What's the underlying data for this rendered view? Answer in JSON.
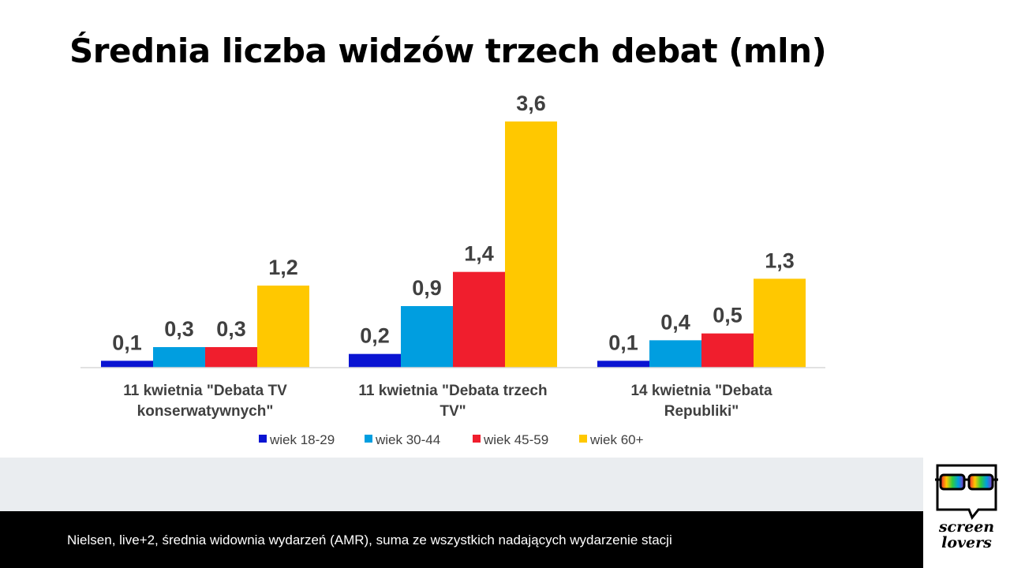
{
  "chart_data": {
    "type": "bar",
    "title": "Średnia liczba widzów trzech debat (mln)",
    "categories": [
      [
        "11 kwietnia \"Debata TV",
        "konserwatywnych\""
      ],
      [
        "11 kwietnia \"Debata trzech",
        "TV\""
      ],
      [
        "14 kwietnia \"Debata",
        "Republiki\""
      ]
    ],
    "series": [
      {
        "name": "wiek 18-29",
        "color": "#0a14d2",
        "values": [
          0.1,
          0.2,
          0.1
        ]
      },
      {
        "name": "wiek 30-44",
        "color": "#009ee0",
        "values": [
          0.3,
          0.9,
          0.4
        ]
      },
      {
        "name": "wiek 45-59",
        "color": "#f01e2d",
        "values": [
          0.3,
          1.4,
          0.5
        ]
      },
      {
        "name": "wiek 60+",
        "color": "#ffc800",
        "values": [
          1.2,
          3.6,
          1.3
        ]
      }
    ],
    "decimal_separator": ",",
    "ylim": [
      0,
      3.6
    ],
    "grid": false,
    "legend_position": "bottom"
  },
  "footer": {
    "source": "Nielsen, live+2, średnia widownia wydarzeń (AMR), suma ze wszystkich nadających wydarzenie stacji"
  },
  "logo": {
    "line1": "screen",
    "line2": "lovers",
    "colors": [
      "#f01e2d",
      "#ffc800",
      "#2ecc40",
      "#009ee0",
      "#8b2fc9"
    ]
  }
}
